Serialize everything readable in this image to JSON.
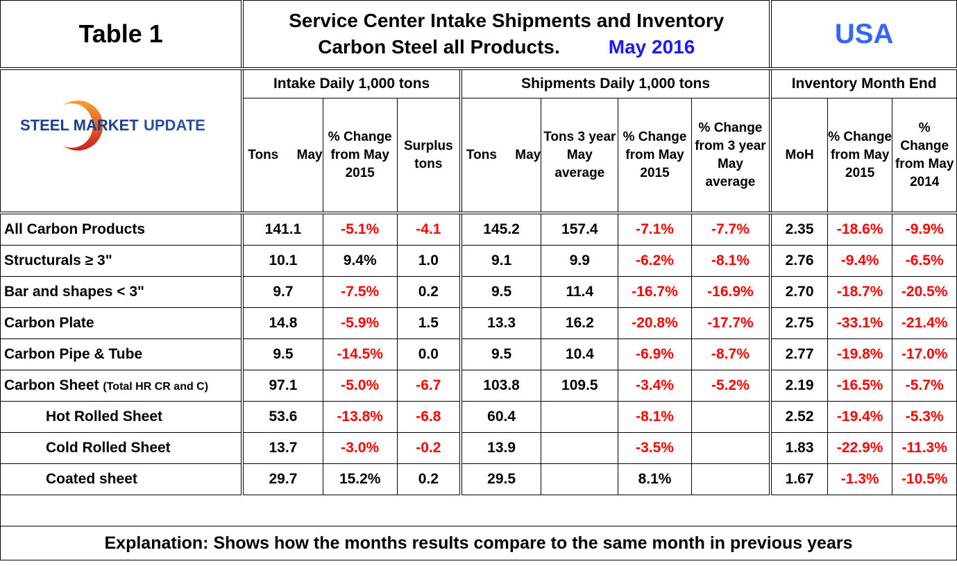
{
  "header": {
    "table_label": "Table 1",
    "title_line1": "Service Center Intake Shipments and Inventory",
    "title_line2": "Carbon Steel all Products.",
    "period": "May 2016",
    "region": "USA"
  },
  "logo": {
    "text_bold": "STEEL MARKET",
    "text_light": "UPDATE",
    "colors": {
      "arc_top": "#f7a030",
      "arc_bottom": "#cc2020",
      "text": "#1a3f8f"
    }
  },
  "groups": {
    "intake": "Intake Daily 1,000 tons",
    "shipments": "Shipments Daily 1,000 tons",
    "inventory": "Inventory Month End"
  },
  "columns": {
    "intake_tons": "Tons     May",
    "intake_pct": "% Change from May 2015",
    "surplus": "Surplus tons",
    "ship_tons": "Tons     May",
    "ship_3yr": "Tons 3 year May average",
    "ship_pct": "% Change from May 2015",
    "ship_pct3": "% Change from 3 year May average",
    "moh": "MoH",
    "inv_pct15": "% Change from May 2015",
    "inv_pct14": "% Change from May 2014"
  },
  "rows": [
    {
      "label": "All Carbon Products",
      "note": "",
      "indent": false,
      "v": [
        "141.1",
        "-5.1%",
        "-4.1",
        "145.2",
        "157.4",
        "-7.1%",
        "-7.7%",
        "2.35",
        "-18.6%",
        "-9.9%"
      ]
    },
    {
      "label": "Structurals ≥ 3\"",
      "note": "",
      "indent": false,
      "v": [
        "10.1",
        "9.4%",
        "1.0",
        "9.1",
        "9.9",
        "-6.2%",
        "-8.1%",
        "2.76",
        "-9.4%",
        "-6.5%"
      ]
    },
    {
      "label": "Bar and shapes < 3\"",
      "note": "",
      "indent": false,
      "v": [
        "9.7",
        "-7.5%",
        "0.2",
        "9.5",
        "11.4",
        "-16.7%",
        "-16.9%",
        "2.70",
        "-18.7%",
        "-20.5%"
      ]
    },
    {
      "label": "Carbon Plate",
      "note": "",
      "indent": false,
      "v": [
        "14.8",
        "-5.9%",
        "1.5",
        "13.3",
        "16.2",
        "-20.8%",
        "-17.7%",
        "2.75",
        "-33.1%",
        "-21.4%"
      ]
    },
    {
      "label": "Carbon Pipe & Tube",
      "note": "",
      "indent": false,
      "v": [
        "9.5",
        "-14.5%",
        "0.0",
        "9.5",
        "10.4",
        "-6.9%",
        "-8.7%",
        "2.77",
        "-19.8%",
        "-17.0%"
      ]
    },
    {
      "label": "Carbon Sheet",
      "note": "(Total HR CR and C)",
      "indent": false,
      "v": [
        "97.1",
        "-5.0%",
        "-6.7",
        "103.8",
        "109.5",
        "-3.4%",
        "-5.2%",
        "2.19",
        "-16.5%",
        "-5.7%"
      ]
    },
    {
      "label": "Hot Rolled Sheet",
      "note": "",
      "indent": true,
      "v": [
        "53.6",
        "-13.8%",
        "-6.8",
        "60.4",
        "",
        "-8.1%",
        "",
        "2.52",
        "-19.4%",
        "-5.3%"
      ]
    },
    {
      "label": "Cold Rolled Sheet",
      "note": "",
      "indent": true,
      "v": [
        "13.7",
        "-3.0%",
        "-0.2",
        "13.9",
        "",
        "-3.5%",
        "",
        "1.83",
        "-22.9%",
        "-11.3%"
      ]
    },
    {
      "label": "Coated sheet",
      "note": "",
      "indent": true,
      "v": [
        "29.7",
        "15.2%",
        "0.2",
        "29.5",
        "",
        "8.1%",
        "",
        "1.67",
        "-1.3%",
        "-10.5%"
      ]
    }
  ],
  "red_columns": [
    1,
    2,
    5,
    6,
    8,
    9
  ],
  "red_exceptions": [
    [
      1,
      1
    ],
    [
      1,
      2
    ],
    [
      2,
      2
    ],
    [
      3,
      2
    ],
    [
      4,
      2
    ],
    [
      8,
      1
    ],
    [
      8,
      2
    ],
    [
      8,
      5
    ]
  ],
  "colors": {
    "negative": "#ff0000",
    "accent_blue": "#1a1aff",
    "usa_blue": "#3366ff"
  },
  "footer": {
    "explanation": "Explanation: Shows how the months results compare to the same month in previous years"
  }
}
